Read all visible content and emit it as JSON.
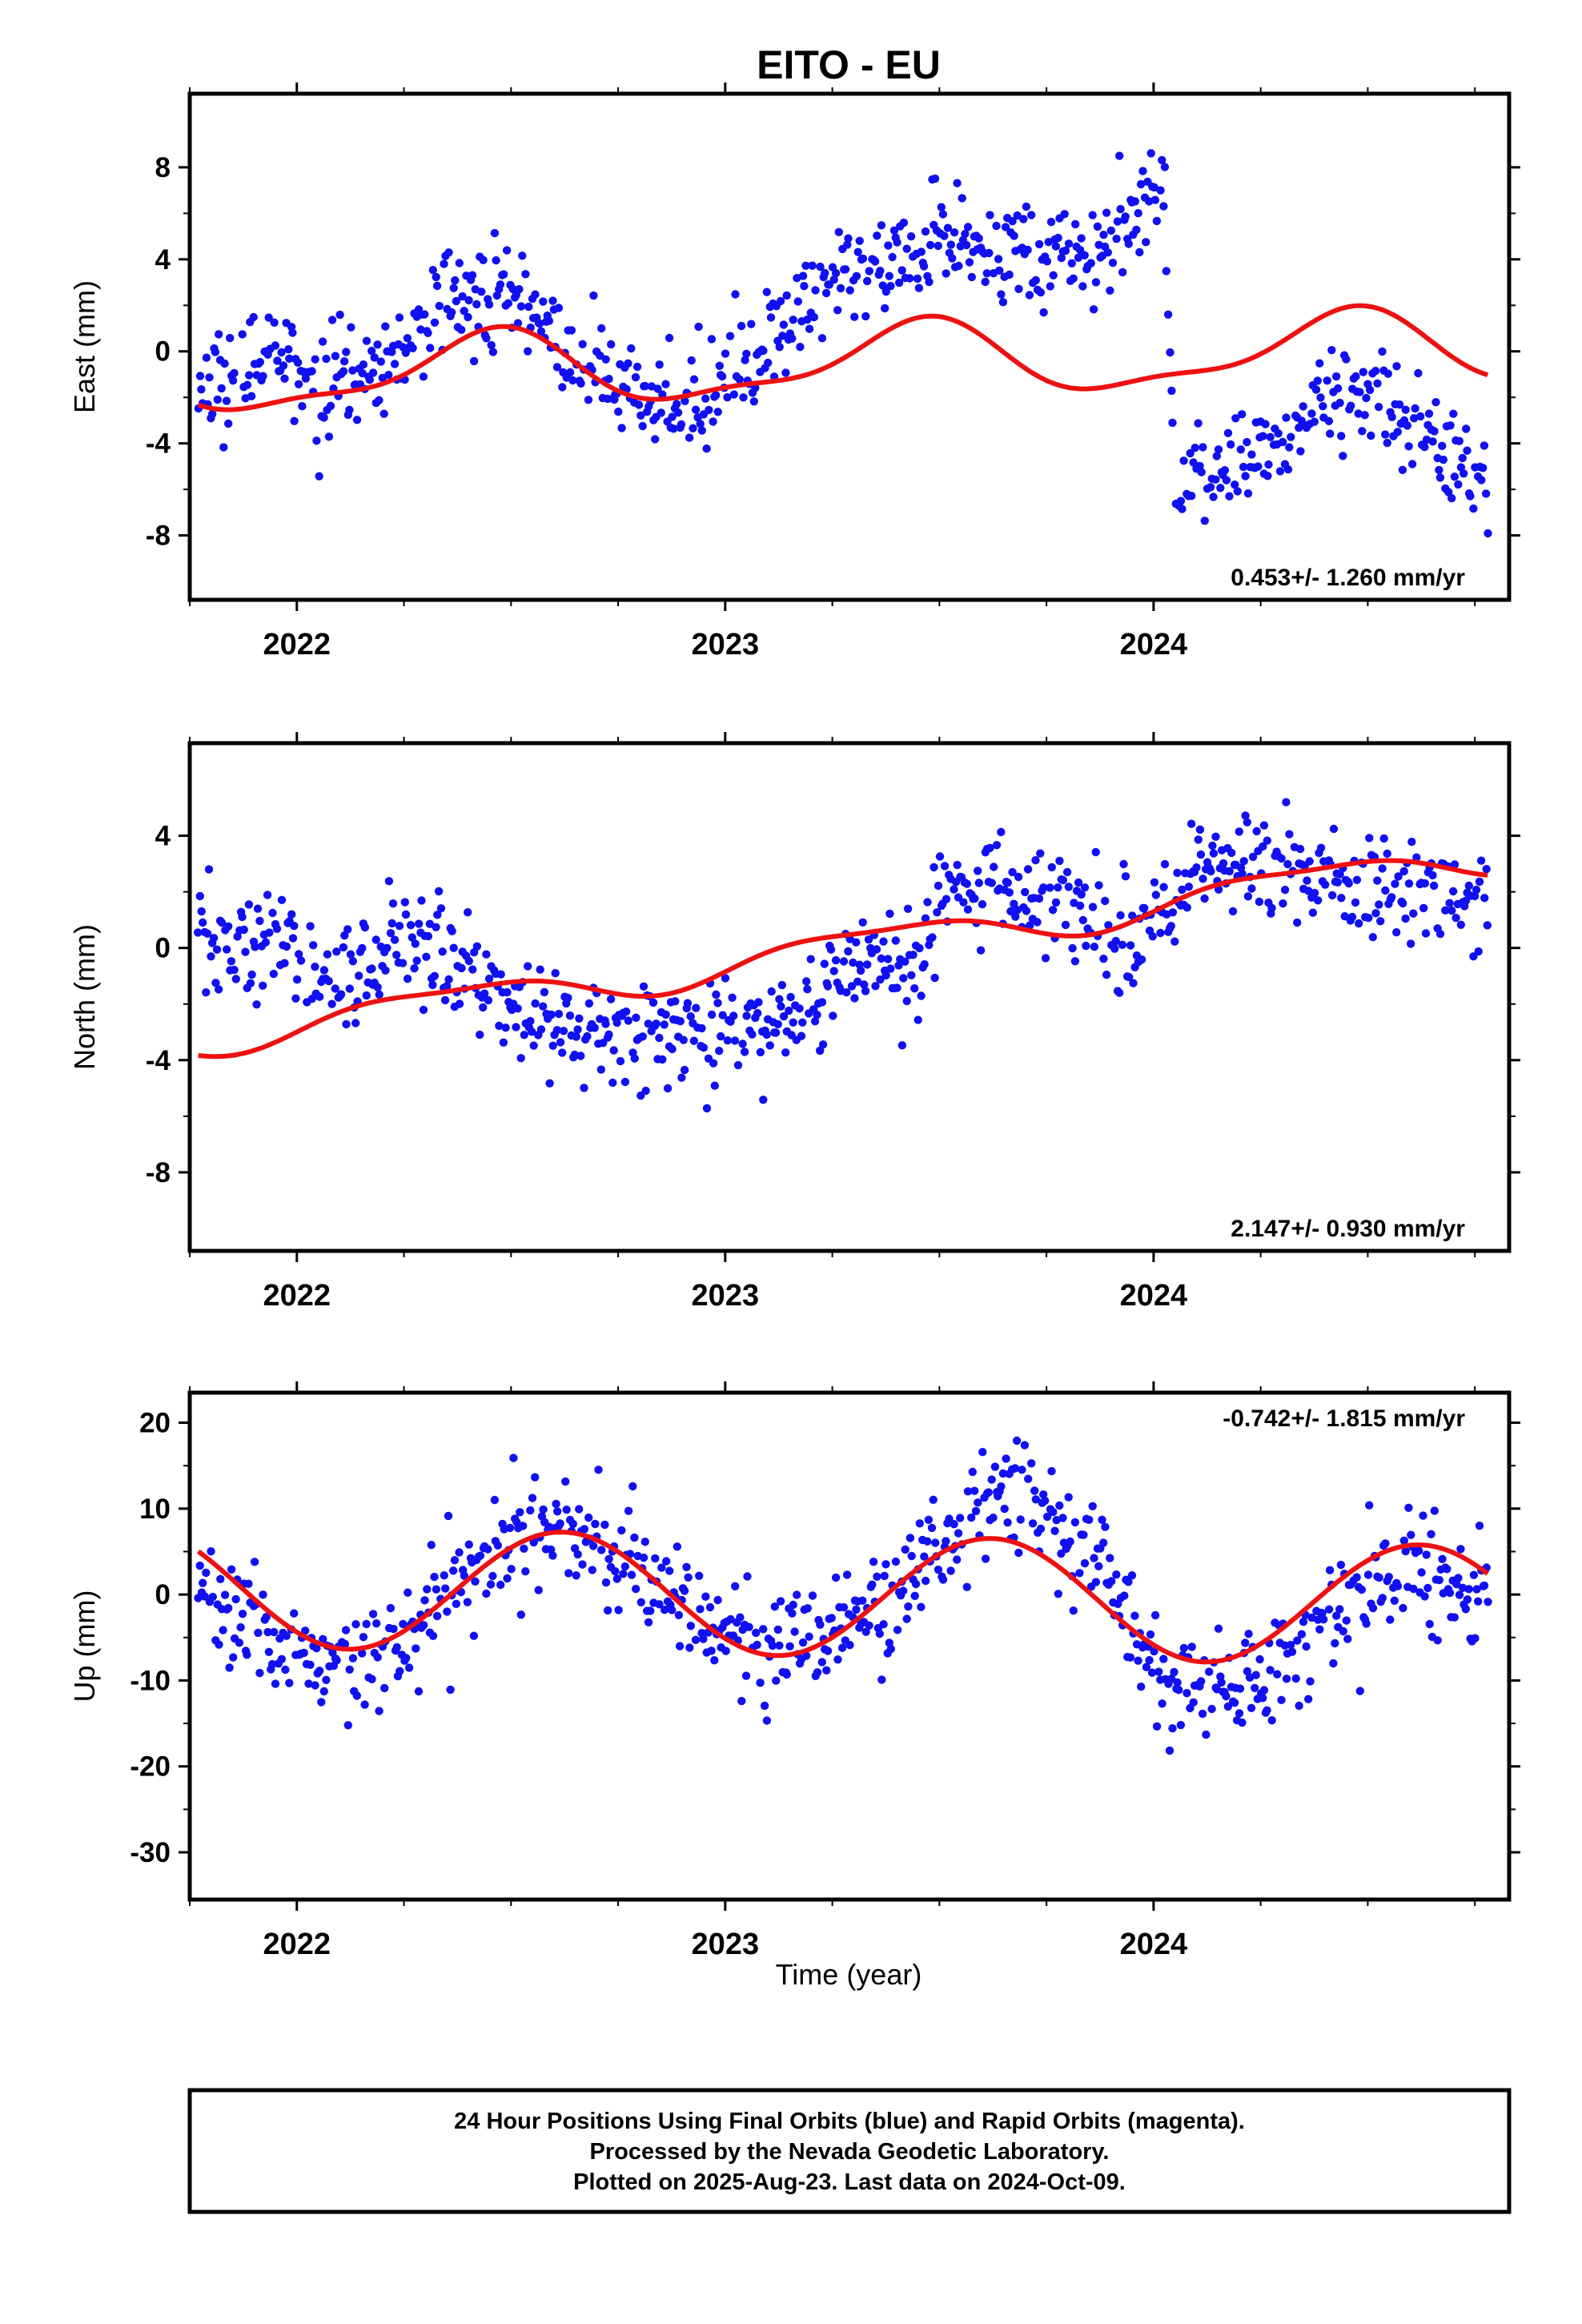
{
  "chart_data": {
    "type": "scatter",
    "title": "EITO - EU",
    "xlabel": "Time (year)",
    "xlim": [
      2021.75,
      2024.83
    ],
    "x_ticks": [
      2022,
      2023,
      2024
    ],
    "x_tick_labels": [
      "2022",
      "2023",
      "2024"
    ],
    "panels": [
      {
        "id": "east",
        "ylabel": "East (mm)",
        "ylim": [
          -10.8,
          11.2
        ],
        "y_ticks": [
          8,
          4,
          0,
          -4,
          -8
        ],
        "y_tick_labels": [
          "8",
          "4",
          "0",
          "-4",
          "-8"
        ],
        "rate_label": "0.453+/- 1.260 mm/yr",
        "rate_position": "bottom-right",
        "points": {
          "x_start": 2021.77,
          "x_end": 2024.78,
          "anchors_x": [
            2021.77,
            2021.95,
            2022.05,
            2022.2,
            2022.35,
            2022.45,
            2022.55,
            2022.65,
            2022.8,
            2022.95,
            2023.05,
            2023.2,
            2023.35,
            2023.5,
            2023.65,
            2023.8,
            2023.95,
            2024.0,
            2024.02,
            2024.05,
            2024.1,
            2024.2,
            2024.3,
            2024.4,
            2024.55,
            2024.7,
            2024.78
          ],
          "anchors_y": [
            -2.0,
            0.0,
            -1.5,
            -1.0,
            2.2,
            2.6,
            2.0,
            -0.5,
            -2.0,
            -2.0,
            -0.5,
            2.0,
            4.0,
            4.5,
            4.5,
            4.0,
            5.5,
            7.5,
            9.0,
            -6.0,
            -5.5,
            -4.5,
            -4.0,
            -2.0,
            -2.5,
            -4.5,
            -6.0
          ],
          "noise": 1.5
        },
        "model": {
          "trend_mm_per_yr": 0.453,
          "y_at_x0": -1.2,
          "x0": 2021.77,
          "terms": [
            {
              "period": 1.0,
              "amp": 1.5,
              "phase_peak": 2022.45
            },
            {
              "period": 0.5,
              "amp": 0.5,
              "phase_peak": 2022.0
            }
          ],
          "x_start": 2021.77,
          "x_end": 2024.78,
          "color": "#ee1111"
        }
      },
      {
        "id": "north",
        "ylabel": "North (mm)",
        "ylim": [
          -10.8,
          7.3
        ],
        "y_ticks": [
          4,
          0,
          -4,
          -8
        ],
        "y_tick_labels": [
          "4",
          "0",
          "-4",
          "-8"
        ],
        "rate_label": "2.147+/- 0.930 mm/yr",
        "rate_position": "bottom-right",
        "points": {
          "x_start": 2021.77,
          "x_end": 2024.78,
          "anchors_x": [
            2021.77,
            2021.95,
            2022.1,
            2022.25,
            2022.4,
            2022.55,
            2022.7,
            2022.85,
            2023.0,
            2023.1,
            2023.2,
            2023.35,
            2023.45,
            2023.5,
            2023.65,
            2023.8,
            2023.95,
            2024.1,
            2024.25,
            2024.4,
            2024.55,
            2024.7,
            2024.78
          ],
          "anchors_y": [
            0.0,
            0.0,
            -1.0,
            0.5,
            -1.0,
            -2.5,
            -3.0,
            -3.0,
            -3.5,
            -3.0,
            -2.0,
            -0.5,
            -1.0,
            2.0,
            2.0,
            1.5,
            0.0,
            2.5,
            3.0,
            2.5,
            2.0,
            1.5,
            1.5
          ],
          "noise": 1.3
        },
        "model": {
          "trend_mm_per_yr": 2.147,
          "y_at_x0": -3.2,
          "x0": 2021.77,
          "terms": [
            {
              "period": 1.0,
              "amp": 0.6,
              "phase_peak": 2022.35
            },
            {
              "period": 0.5,
              "amp": 0.2,
              "phase_peak": 2022.1
            }
          ],
          "x_start": 2021.77,
          "x_end": 2024.78,
          "color": "#ee1111"
        }
      },
      {
        "id": "up",
        "ylabel": "Up (mm)",
        "ylim": [
          -35.5,
          23.5
        ],
        "y_ticks": [
          20,
          10,
          0,
          -10,
          -20,
          -30
        ],
        "y_tick_labels": [
          "20",
          "10",
          "0",
          "-10",
          "-20",
          "-30"
        ],
        "rate_label": "-0.742+/- 1.815 mm/yr",
        "rate_position": "top-right",
        "points": {
          "x_start": 2021.77,
          "x_end": 2024.78,
          "anchors_x": [
            2021.77,
            2021.9,
            2022.05,
            2022.2,
            2022.35,
            2022.5,
            2022.65,
            2022.8,
            2022.95,
            2023.1,
            2023.25,
            2023.4,
            2023.55,
            2023.65,
            2023.75,
            2023.9,
            2024.05,
            2024.15,
            2024.3,
            2024.45,
            2024.6,
            2024.78
          ],
          "anchors_y": [
            -2.0,
            -4.0,
            -9.0,
            -8.0,
            0.0,
            6.0,
            8.0,
            3.0,
            -3.0,
            -7.0,
            -3.0,
            0.0,
            8.0,
            12.0,
            8.0,
            2.0,
            -12.0,
            -10.0,
            -8.0,
            -2.0,
            3.0,
            0.0
          ],
          "noise": 4.5
        },
        "model": {
          "trend_mm_per_yr": -0.742,
          "y_at_x0": 0.9,
          "x0": 2021.77,
          "terms": [
            {
              "period": 1.0,
              "amp": 7.0,
              "phase_peak": 2022.62
            }
          ],
          "x_start": 2021.77,
          "x_end": 2024.78,
          "color": "#ee1111"
        }
      }
    ],
    "series": [
      {
        "name": "Final Orbits",
        "color": "#1010f0",
        "marker": "dot"
      },
      {
        "name": "Model",
        "color": "#ee1111",
        "marker": "line"
      }
    ],
    "grid": false,
    "legend": "none"
  },
  "footer": {
    "line1": "24 Hour Positions Using Final Orbits (blue) and Rapid Orbits (magenta).",
    "line2": "Processed by the Nevada Geodetic Laboratory.",
    "line3": "Plotted on 2025-Aug-23. Last data on 2024-Oct-09."
  }
}
